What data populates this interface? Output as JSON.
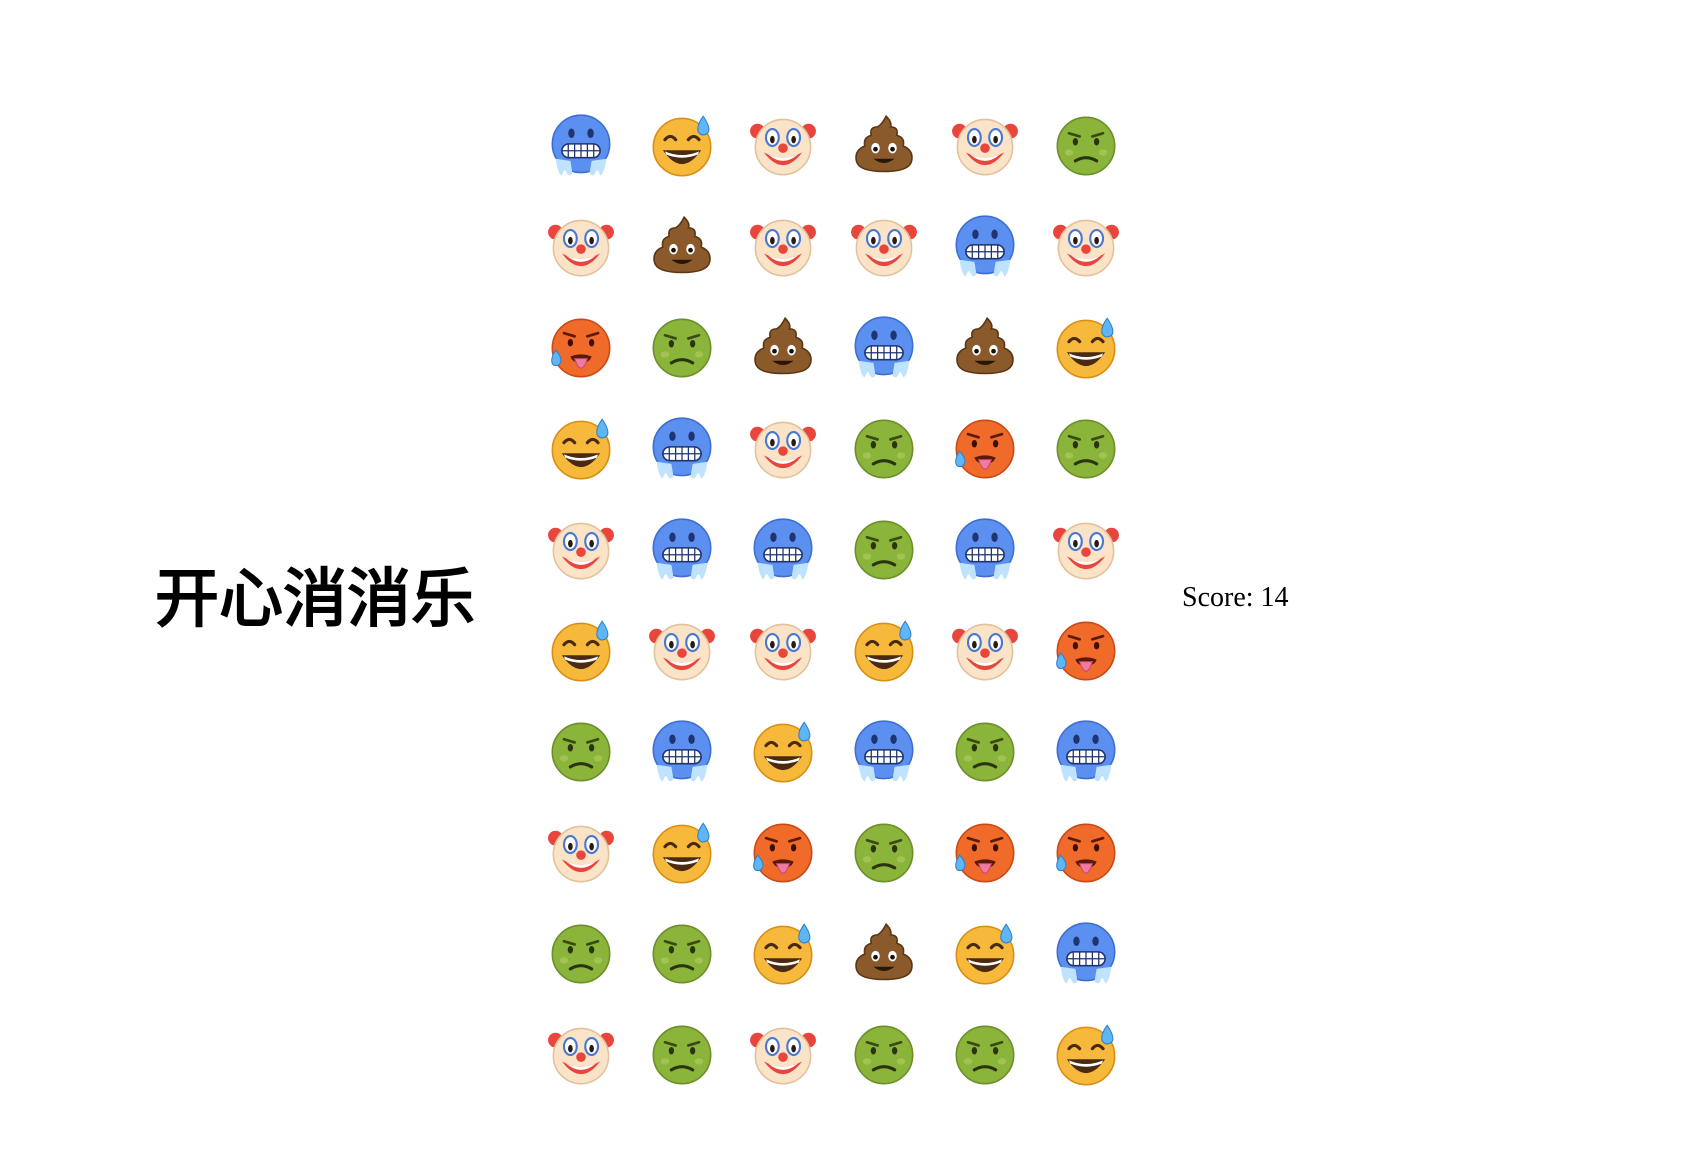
{
  "title": "开心消消乐",
  "score": {
    "label": "Score:",
    "value": "14"
  },
  "board": {
    "columns": 6,
    "rows": 10,
    "tile_names": {
      "cold": "cold-face-icon",
      "sweat": "grinning-sweat-face-icon",
      "clown": "clown-face-icon",
      "poop": "pile-of-poo-icon",
      "sick": "nauseated-face-icon",
      "hot": "hot-face-icon"
    },
    "grid": [
      [
        "cold",
        "sweat",
        "clown",
        "poop",
        "clown",
        "sick"
      ],
      [
        "clown",
        "poop",
        "clown",
        "clown",
        "cold",
        "clown"
      ],
      [
        "hot",
        "sick",
        "poop",
        "cold",
        "poop",
        "sweat"
      ],
      [
        "sweat",
        "cold",
        "clown",
        "sick",
        "hot",
        "sick"
      ],
      [
        "clown",
        "cold",
        "cold",
        "sick",
        "cold",
        "clown"
      ],
      [
        "sweat",
        "clown",
        "clown",
        "sweat",
        "clown",
        "hot"
      ],
      [
        "sick",
        "cold",
        "sweat",
        "cold",
        "sick",
        "cold"
      ],
      [
        "clown",
        "sweat",
        "hot",
        "sick",
        "hot",
        "hot"
      ],
      [
        "sick",
        "sick",
        "sweat",
        "poop",
        "sweat",
        "cold"
      ],
      [
        "clown",
        "sick",
        "clown",
        "sick",
        "sick",
        "sweat"
      ]
    ]
  },
  "colors": {
    "cold": "#5b8ff0",
    "sweat": "#f6b93b",
    "clown": "#fbe3c7",
    "poop": "#8a5a2b",
    "sick": "#8bb43a",
    "hot": "#f06a2a"
  }
}
